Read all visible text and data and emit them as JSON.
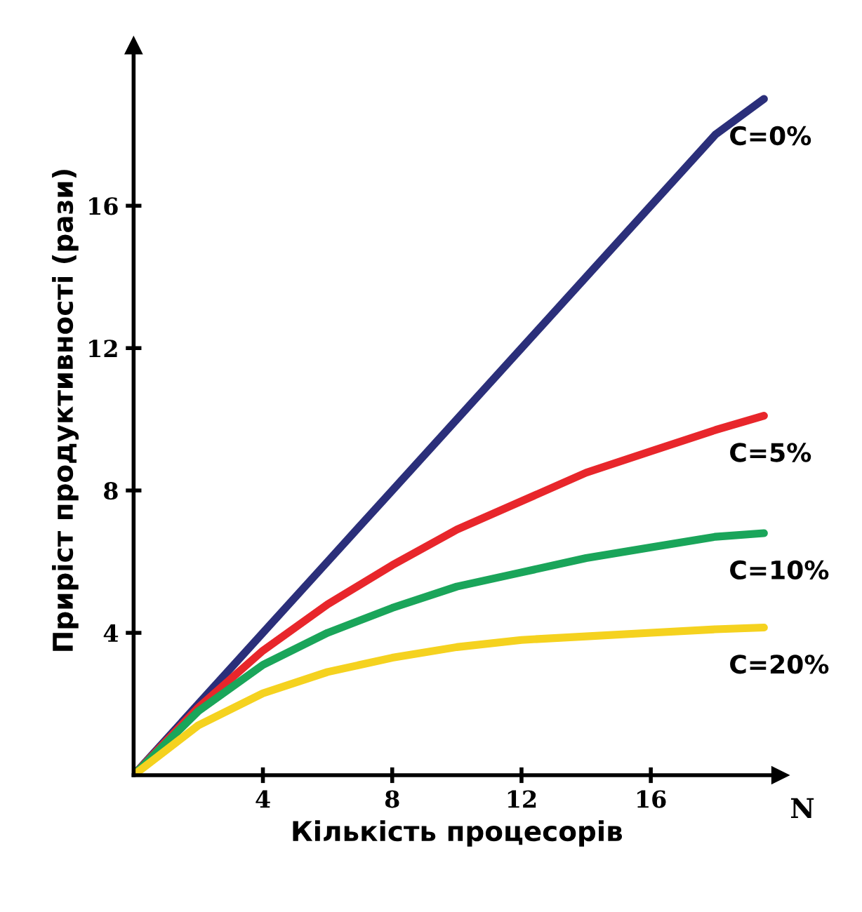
{
  "chart_data": {
    "type": "line",
    "xlabel": "Кількість процесорів",
    "ylabel": "Приріст продуктивності (рази)",
    "x": [
      0,
      2,
      4,
      6,
      8,
      10,
      12,
      14,
      16,
      18,
      19.5
    ],
    "series": [
      {
        "name": "C=0%",
        "color": "#2b2f7a",
        "values": [
          0,
          2,
          4,
          6,
          8,
          10,
          12,
          14,
          16,
          18,
          19
        ]
      },
      {
        "name": "C=5%",
        "color": "#e8262b",
        "values": [
          0,
          1.9,
          3.5,
          4.8,
          5.9,
          6.9,
          7.7,
          8.5,
          9.1,
          9.7,
          10.1
        ]
      },
      {
        "name": "C=10%",
        "color": "#1aa55a",
        "values": [
          0,
          1.8,
          3.1,
          4.0,
          4.7,
          5.3,
          5.7,
          6.1,
          6.4,
          6.7,
          6.8
        ]
      },
      {
        "name": "C=20%",
        "color": "#f5d21f",
        "values": [
          0,
          1.4,
          2.3,
          2.9,
          3.3,
          3.6,
          3.8,
          3.9,
          4.0,
          4.1,
          4.15
        ]
      }
    ],
    "xlim": [
      0,
      20
    ],
    "ylim": [
      0,
      20.5
    ],
    "xticks": [
      4,
      8,
      12,
      16
    ],
    "yticks": [
      4,
      8,
      12,
      16
    ],
    "annotations": [
      "N"
    ],
    "grid": false,
    "legend": false,
    "marker": "none",
    "line_style": "solid"
  }
}
